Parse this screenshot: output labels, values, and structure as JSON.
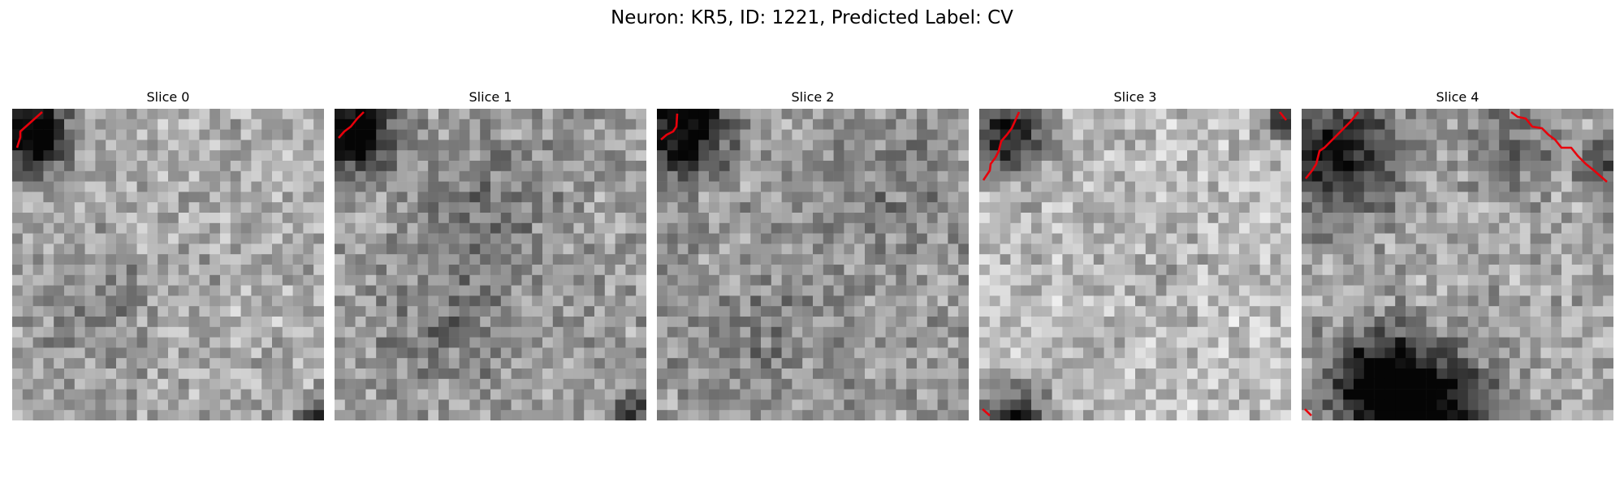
{
  "figure": {
    "title": "Neuron: KR5, ID: 1221, Predicted Label: CV"
  },
  "panels": [
    {
      "title": "Slice 0"
    },
    {
      "title": "Slice 1"
    },
    {
      "title": "Slice 2"
    },
    {
      "title": "Slice 3"
    },
    {
      "title": "Slice 4"
    }
  ],
  "colors": {
    "contour": "#e8000b",
    "colormap": "grayscale"
  }
}
